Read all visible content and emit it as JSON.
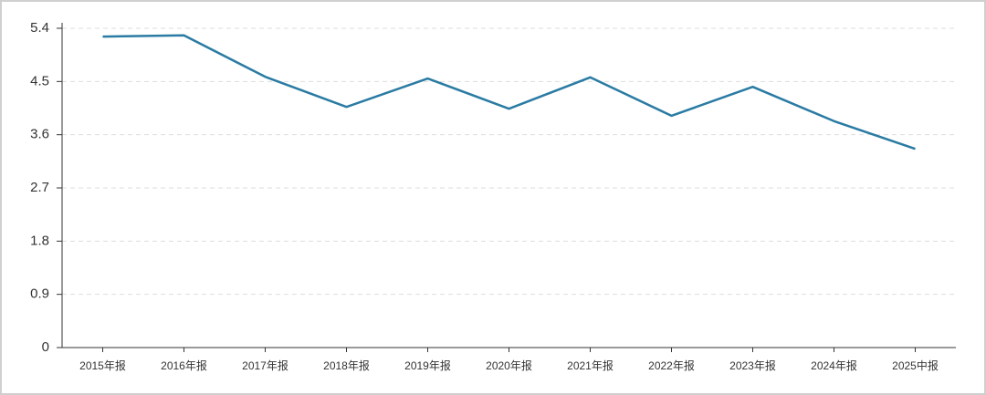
{
  "chart_data": {
    "type": "line",
    "categories": [
      "2015年报",
      "2016年报",
      "2017年报",
      "2018年报",
      "2019年报",
      "2020年报",
      "2021年报",
      "2022年报",
      "2023年报",
      "2024年报",
      "2025中报"
    ],
    "series": [
      {
        "color": "#2a7ba3",
        "values": [
          5.26,
          5.28,
          4.58,
          4.07,
          4.55,
          4.04,
          4.57,
          3.92,
          4.41,
          3.83,
          3.36
        ]
      }
    ],
    "ylim": [
      0,
      5.4
    ],
    "yticks": [
      0,
      0.9,
      1.8,
      2.7,
      3.6,
      4.5,
      5.4
    ],
    "grid": true
  }
}
